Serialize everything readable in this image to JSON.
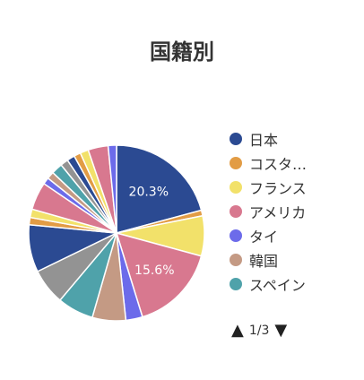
{
  "chart_data": {
    "type": "pie",
    "title": "国籍別",
    "slices": [
      {
        "label": "日本",
        "value": 20.3,
        "color": "#2b4a92",
        "show_label": true
      },
      {
        "label": "コスタ…",
        "value": 1.0,
        "color": "#e29c45",
        "show_label": false
      },
      {
        "label": "フランス",
        "value": 7.2,
        "color": "#f2e16a",
        "show_label": false
      },
      {
        "label": "アメリカ",
        "value": 15.6,
        "color": "#d8788f",
        "show_label": true
      },
      {
        "label": "タイ",
        "value": 3.0,
        "color": "#6c6bea",
        "show_label": false
      },
      {
        "label": "韓国",
        "value": 6.0,
        "color": "#c49a84",
        "show_label": false
      },
      {
        "label": "スペイン",
        "value": 6.5,
        "color": "#4fa2aa",
        "show_label": false
      },
      {
        "label": "",
        "value": 6.5,
        "color": "#939393",
        "show_label": false
      },
      {
        "label": "",
        "value": 8.5,
        "color": "#2b4a92",
        "show_label": false
      },
      {
        "label": "",
        "value": 1.3,
        "color": "#e29c45",
        "show_label": false
      },
      {
        "label": "",
        "value": 1.5,
        "color": "#f2e16a",
        "show_label": false
      },
      {
        "label": "",
        "value": 5.0,
        "color": "#d8788f",
        "show_label": false
      },
      {
        "label": "",
        "value": 1.2,
        "color": "#6c6bea",
        "show_label": false
      },
      {
        "label": "",
        "value": 1.3,
        "color": "#c49a84",
        "show_label": false
      },
      {
        "label": "",
        "value": 2.0,
        "color": "#4fa2aa",
        "show_label": false
      },
      {
        "label": "",
        "value": 1.4,
        "color": "#939393",
        "show_label": false
      },
      {
        "label": "",
        "value": 1.4,
        "color": "#2b4a92",
        "show_label": false
      },
      {
        "label": "",
        "value": 1.2,
        "color": "#e29c45",
        "show_label": false
      },
      {
        "label": "",
        "value": 1.5,
        "color": "#f2e16a",
        "show_label": false
      },
      {
        "label": "",
        "value": 3.6,
        "color": "#d8788f",
        "show_label": false
      },
      {
        "label": "",
        "value": 1.5,
        "color": "#6c6bea",
        "show_label": false
      }
    ],
    "legend_placement": "right"
  },
  "legend": {
    "items": [
      {
        "label": "日本",
        "color": "#2b4a92"
      },
      {
        "label": "コスタ…",
        "color": "#e29c45"
      },
      {
        "label": "フランス",
        "color": "#f2e16a"
      },
      {
        "label": "アメリカ",
        "color": "#d8788f"
      },
      {
        "label": "タイ",
        "color": "#6c6bea"
      },
      {
        "label": "韓国",
        "color": "#c49a84"
      },
      {
        "label": "スペイン",
        "color": "#4fa2aa"
      }
    ]
  },
  "pager": {
    "text": "1/3",
    "up_icon": "triangle-up-icon",
    "down_icon": "triangle-down-icon"
  }
}
